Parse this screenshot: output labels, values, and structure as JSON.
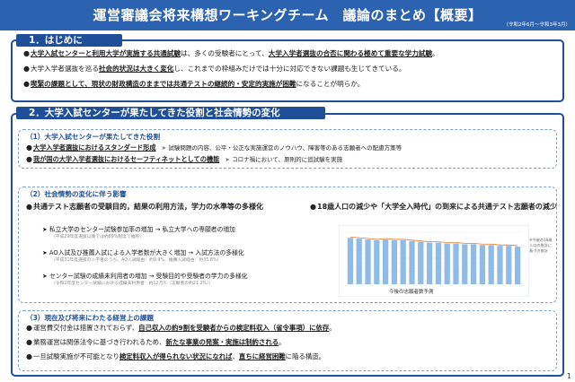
{
  "header": {
    "title": "運営審議会将来構想ワーキングチーム　議論のまとめ【概要】",
    "period": "（令和2年6月～令和3年3月）"
  },
  "section1": {
    "heading": "1．はじめに",
    "bullets": [
      {
        "parts": [
          {
            "text": "大学入試センターと利用大学が実施する共通試験",
            "style": "ul"
          },
          {
            "text": "は、多くの受験者にとって、",
            "style": ""
          },
          {
            "text": "大学入学者選抜の合否に関わる極めて重要な学力試験",
            "style": "ul"
          },
          {
            "text": "。",
            "style": ""
          }
        ]
      },
      {
        "parts": [
          {
            "text": "大学入学者選抜を巡る",
            "style": ""
          },
          {
            "text": "社会的状況は大きく変化",
            "style": "ul"
          },
          {
            "text": "し、これまでの枠組みだけでは十分に対応できない課題も生じてきている。",
            "style": ""
          }
        ]
      },
      {
        "parts": [
          {
            "text": "喫緊の課題として、現状の財政構造のままでは共通テストの継続的・安定的実施が困難",
            "style": "ul"
          },
          {
            "text": "になることが明らか。",
            "style": ""
          }
        ]
      }
    ]
  },
  "section2": {
    "heading": "2．大学入試センターが果たしてきた役割と社会情勢の変化",
    "sub1": {
      "heading": "（1）大学入試センターが果たしてきた役割",
      "rows": [
        {
          "key": "大学入学者選抜におけるスタンダード形成",
          "note": "試験問題の内容、公平・公正な実施運営のノウハウ、障害等のある志願者への配慮方策等"
        },
        {
          "key": "我が国の大学入学者選抜におけるセーフティネットとしての機能",
          "note": "コロナ禍において、原則的に追試験を実施"
        }
      ]
    },
    "sub2": {
      "heading": "（2）社会情勢の変化に伴う影響",
      "left_heading": "共通テスト志願者の受験目的，結果の利用方法，学力の水準等の多様化",
      "arrow_items": [
        {
          "text": "私立大学のセンター試験参加率の増加 → 私立大学への専願者の増加",
          "small": "（平成29年度選抜以降では約89%程度で推移）"
        },
        {
          "text": "AO入試及び推薦入試による入学者数が大きく増加 → 入試方法の多様化",
          "small": "（平成31年度選抜の入学者のうち、AO入試経由：約9.9%、推薦入試経由：約35.8%）"
        },
        {
          "text": "センター試験の成績未利用者の増加 → 受験目的や受験者の学力の多様化",
          "small": "（令和2年度センター試験における成績未利用者：約12万人（志願者の約21.2%））"
        }
      ],
      "right_heading": "18歳人口の減少や「大学全入時代」の到来による共通テスト志願者の減少",
      "chart_caption": "今後の志願者数予測",
      "chart_note": "※今後の18歳人口の推計に基づき推計"
    }
  },
  "section3": {
    "heading": "（3）現在及び将来にわたる経営上の課題",
    "bullets": [
      {
        "parts": [
          {
            "text": "運営費交付金は措置されておらず、",
            "style": ""
          },
          {
            "text": "自己収入の約9割を受験者からの検定料収入（省令事項）に依存",
            "style": "ul"
          },
          {
            "text": "。",
            "style": ""
          }
        ]
      },
      {
        "parts": [
          {
            "text": "業務運営は関係法令に基づき行われるため、",
            "style": ""
          },
          {
            "text": "新たな事業の発案・実施は制約される",
            "style": "ul"
          },
          {
            "text": "。",
            "style": ""
          }
        ]
      },
      {
        "parts": [
          {
            "text": "一旦試験実施が不可能となり",
            "style": ""
          },
          {
            "text": "検定料収入が得られない状況になれば",
            "style": "ul"
          },
          {
            "text": "、",
            "style": ""
          },
          {
            "text": "直ちに経営困難",
            "style": "ul"
          },
          {
            "text": "に陥る構造。",
            "style": ""
          }
        ]
      }
    ]
  },
  "chart_data": {
    "type": "bar",
    "title": "今後の志願者数予測",
    "note": "※今後の18歳人口の推計に基づき推計",
    "categories": [
      "",
      "",
      "",
      "",
      "",
      "",
      "",
      "",
      "",
      "",
      "",
      "",
      "",
      "",
      "",
      "",
      "",
      "",
      "",
      ""
    ],
    "series": [
      {
        "values": [
          58,
          57,
          56,
          55,
          56,
          55,
          55,
          54,
          53,
          52,
          52,
          51,
          51,
          50,
          50,
          49,
          49,
          48,
          48,
          47
        ]
      }
    ],
    "series_colors": [
      "#8fbce6"
    ],
    "highlight_color": "#e27c2c",
    "ylim": [
      0,
      65
    ]
  },
  "page_number": "1"
}
